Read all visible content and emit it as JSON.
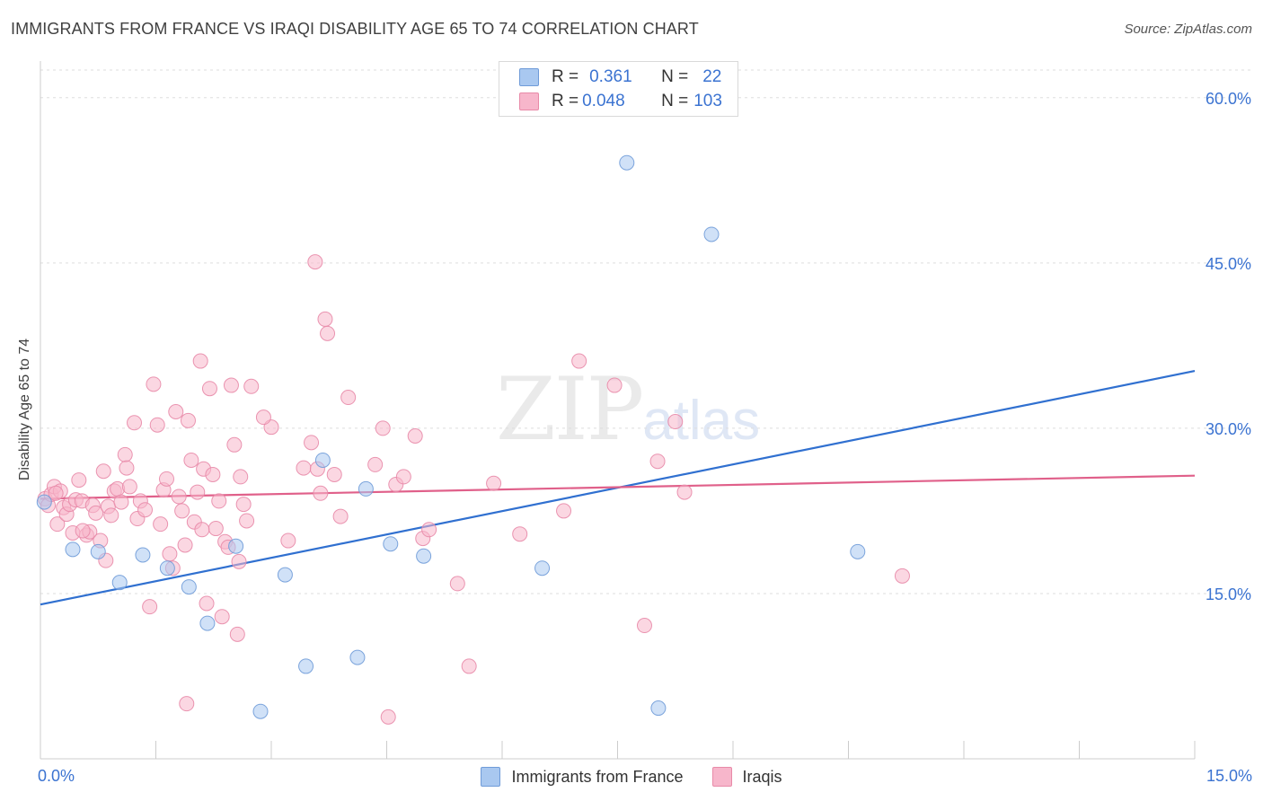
{
  "header": {
    "title": "IMMIGRANTS FROM FRANCE VS IRAQI DISABILITY AGE 65 TO 74 CORRELATION CHART",
    "source": "Source: ZipAtlas.com"
  },
  "watermark": {
    "text_main": "ZIP",
    "text_sub": "atlas"
  },
  "legend": {
    "rows": [
      {
        "r_label": "R =",
        "r_value": "0.361",
        "n_label": "N =",
        "n_value": "22"
      },
      {
        "r_label": "R =",
        "r_value": "0.048",
        "n_label": "N =",
        "n_value": "103"
      }
    ],
    "bottom": [
      {
        "label": "Immigrants from France"
      },
      {
        "label": "Iraqis"
      }
    ]
  },
  "colors": {
    "france_fill": "#a9c8f0",
    "france_stroke": "#6f9bd8",
    "france_line": "#3070d0",
    "iraqi_fill": "#f7b6cb",
    "iraqi_stroke": "#e88aa8",
    "iraqi_line": "#e0608a",
    "axis_text": "#3b73d1"
  },
  "chart_data": {
    "type": "scatter",
    "title": "IMMIGRANTS FROM FRANCE VS IRAQI DISABILITY AGE 65 TO 74 CORRELATION CHART",
    "xlabel": "",
    "ylabel": "Disability Age 65 to 74",
    "xlim": [
      0,
      15
    ],
    "ylim": [
      0,
      63
    ],
    "x_tick_labels": [
      {
        "value": 0,
        "label": "0.0%"
      },
      {
        "value": 15,
        "label": "15.0%"
      }
    ],
    "y_tick_labels": [
      {
        "value": 15,
        "label": "15.0%"
      },
      {
        "value": 30,
        "label": "30.0%"
      },
      {
        "value": 45,
        "label": "45.0%"
      },
      {
        "value": 60,
        "label": "60.0%"
      }
    ],
    "series": [
      {
        "name": "Immigrants from France",
        "r": 0.361,
        "n": 22,
        "trend": {
          "x": [
            0,
            15
          ],
          "y": [
            14.0,
            35.2
          ]
        },
        "points": [
          [
            0.05,
            23.3
          ],
          [
            0.42,
            19.0
          ],
          [
            0.75,
            18.8
          ],
          [
            1.03,
            16.0
          ],
          [
            1.33,
            18.5
          ],
          [
            1.65,
            17.3
          ],
          [
            1.93,
            15.6
          ],
          [
            2.17,
            12.3
          ],
          [
            2.54,
            19.3
          ],
          [
            2.86,
            4.3
          ],
          [
            3.18,
            16.7
          ],
          [
            3.45,
            8.4
          ],
          [
            3.67,
            27.1
          ],
          [
            4.12,
            9.2
          ],
          [
            4.23,
            24.5
          ],
          [
            4.55,
            19.5
          ],
          [
            4.98,
            18.4
          ],
          [
            6.52,
            17.3
          ],
          [
            7.62,
            54.1
          ],
          [
            8.03,
            4.6
          ],
          [
            8.72,
            47.6
          ],
          [
            10.62,
            18.8
          ]
        ]
      },
      {
        "name": "Iraqis",
        "r": 0.048,
        "n": 103,
        "trend": {
          "x": [
            0,
            15
          ],
          "y": [
            23.6,
            25.7
          ]
        },
        "points": [
          [
            0.06,
            23.6
          ],
          [
            0.1,
            23.0
          ],
          [
            0.14,
            24.0
          ],
          [
            0.18,
            24.7
          ],
          [
            0.22,
            21.3
          ],
          [
            0.26,
            24.3
          ],
          [
            0.3,
            22.8
          ],
          [
            0.34,
            22.2
          ],
          [
            0.38,
            23.1
          ],
          [
            0.42,
            20.5
          ],
          [
            0.46,
            23.5
          ],
          [
            0.5,
            25.3
          ],
          [
            0.54,
            23.4
          ],
          [
            0.6,
            20.3
          ],
          [
            0.64,
            20.6
          ],
          [
            0.68,
            23.0
          ],
          [
            0.72,
            22.3
          ],
          [
            0.78,
            19.8
          ],
          [
            0.82,
            26.1
          ],
          [
            0.88,
            22.9
          ],
          [
            0.92,
            22.1
          ],
          [
            0.96,
            24.3
          ],
          [
            1.0,
            24.5
          ],
          [
            1.05,
            23.3
          ],
          [
            1.1,
            27.6
          ],
          [
            1.16,
            24.7
          ],
          [
            1.22,
            30.5
          ],
          [
            1.26,
            21.8
          ],
          [
            1.3,
            23.4
          ],
          [
            1.36,
            22.6
          ],
          [
            1.42,
            13.8
          ],
          [
            1.47,
            34.0
          ],
          [
            1.52,
            30.3
          ],
          [
            1.56,
            21.3
          ],
          [
            1.6,
            24.4
          ],
          [
            1.64,
            25.4
          ],
          [
            1.68,
            18.6
          ],
          [
            1.72,
            17.3
          ],
          [
            1.76,
            31.5
          ],
          [
            1.8,
            23.8
          ],
          [
            1.84,
            22.5
          ],
          [
            1.88,
            19.4
          ],
          [
            1.92,
            30.7
          ],
          [
            1.96,
            27.1
          ],
          [
            2.0,
            21.5
          ],
          [
            2.04,
            24.2
          ],
          [
            2.08,
            36.1
          ],
          [
            2.12,
            26.3
          ],
          [
            2.16,
            14.1
          ],
          [
            2.2,
            33.6
          ],
          [
            2.24,
            25.8
          ],
          [
            2.28,
            20.9
          ],
          [
            2.32,
            23.4
          ],
          [
            2.36,
            12.9
          ],
          [
            2.4,
            19.7
          ],
          [
            2.44,
            19.2
          ],
          [
            2.48,
            33.9
          ],
          [
            2.52,
            28.5
          ],
          [
            2.56,
            11.3
          ],
          [
            2.6,
            25.6
          ],
          [
            2.64,
            23.1
          ],
          [
            2.68,
            21.6
          ],
          [
            2.74,
            33.8
          ],
          [
            1.9,
            5.0
          ],
          [
            3.0,
            30.1
          ],
          [
            3.22,
            19.8
          ],
          [
            3.42,
            26.4
          ],
          [
            3.52,
            28.7
          ],
          [
            3.57,
            45.1
          ],
          [
            3.6,
            26.3
          ],
          [
            3.64,
            24.1
          ],
          [
            3.7,
            39.9
          ],
          [
            3.73,
            38.6
          ],
          [
            3.82,
            25.8
          ],
          [
            4.0,
            32.8
          ],
          [
            4.35,
            26.7
          ],
          [
            4.45,
            30.0
          ],
          [
            4.52,
            3.8
          ],
          [
            4.62,
            24.9
          ],
          [
            4.72,
            25.6
          ],
          [
            4.87,
            29.3
          ],
          [
            4.97,
            20.0
          ],
          [
            5.05,
            20.8
          ],
          [
            5.42,
            15.9
          ],
          [
            5.57,
            8.4
          ],
          [
            5.89,
            25.0
          ],
          [
            6.23,
            20.4
          ],
          [
            7.0,
            36.1
          ],
          [
            7.46,
            33.9
          ],
          [
            7.85,
            12.1
          ],
          [
            8.02,
            27.0
          ],
          [
            8.25,
            30.6
          ],
          [
            8.37,
            24.2
          ],
          [
            11.2,
            16.6
          ],
          [
            2.1,
            20.8
          ],
          [
            0.2,
            24.1
          ],
          [
            0.55,
            20.7
          ],
          [
            1.12,
            26.4
          ],
          [
            2.9,
            31.0
          ],
          [
            3.9,
            22.0
          ],
          [
            6.8,
            22.5
          ],
          [
            0.85,
            18.0
          ],
          [
            2.58,
            17.9
          ]
        ]
      }
    ]
  }
}
